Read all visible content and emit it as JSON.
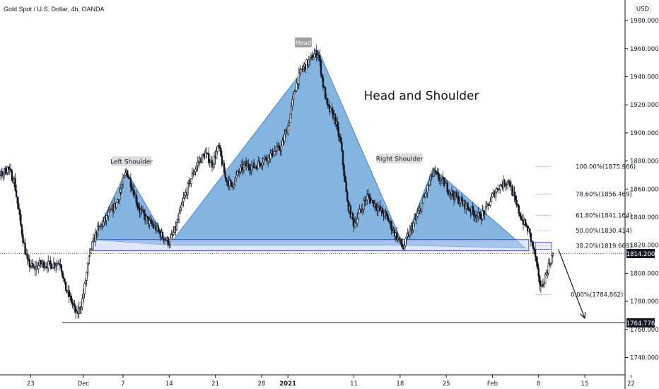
{
  "header": {
    "symbol_title": "Gold Spot / U.S. Dollar, 4h, OANDA",
    "currency": "USD"
  },
  "chart_data": {
    "type": "candlestick",
    "title": "Head and Shoulder",
    "ylim": [
      1724,
      1993
    ],
    "y_ticks": [
      "1740.000",
      "1760.000",
      "1780.000",
      "1800.000",
      "1820.000",
      "1840.000",
      "1860.000",
      "1880.000",
      "1900.000",
      "1920.000",
      "1940.000",
      "1960.000",
      "1980.000"
    ],
    "y_tick_values": [
      1740,
      1760,
      1780,
      1800,
      1820,
      1840,
      1860,
      1880,
      1900,
      1920,
      1940,
      1960,
      1980
    ],
    "x_ticks": [
      "23",
      "Dec",
      "7",
      "14",
      "21",
      "28",
      "2021",
      "11",
      "18",
      "25",
      "Feb",
      "8",
      "15",
      "22"
    ],
    "x_tick_days": [
      -8,
      0,
      6,
      13,
      20,
      27,
      31,
      41,
      48,
      55,
      62,
      69,
      76,
      83
    ],
    "x_origin": "Dec 1",
    "price_series_anchors": [
      {
        "d": -16.5,
        "p": 1889
      },
      {
        "d": -15.5,
        "p": 1881
      },
      {
        "d": -14.5,
        "p": 1870
      },
      {
        "d": -13.5,
        "p": 1866
      },
      {
        "d": -12.5,
        "p": 1870
      },
      {
        "d": -11.5,
        "p": 1875
      },
      {
        "d": -10.5,
        "p": 1866
      },
      {
        "d": -9.5,
        "p": 1834
      },
      {
        "d": -9,
        "p": 1820
      },
      {
        "d": -8.5,
        "p": 1808
      },
      {
        "d": -7.5,
        "p": 1803
      },
      {
        "d": -6.5,
        "p": 1807
      },
      {
        "d": -5,
        "p": 1806
      },
      {
        "d": -3.5,
        "p": 1808
      },
      {
        "d": -2.8,
        "p": 1790
      },
      {
        "d": -1.8,
        "p": 1780
      },
      {
        "d": -1,
        "p": 1770
      },
      {
        "d": -0.2,
        "p": 1780
      },
      {
        "d": 0.5,
        "p": 1800
      },
      {
        "d": 1,
        "p": 1815
      },
      {
        "d": 2,
        "p": 1830
      },
      {
        "d": 3,
        "p": 1836
      },
      {
        "d": 4,
        "p": 1843
      },
      {
        "d": 5,
        "p": 1850
      },
      {
        "d": 6.5,
        "p": 1873
      },
      {
        "d": 7.5,
        "p": 1860
      },
      {
        "d": 8.5,
        "p": 1845
      },
      {
        "d": 10,
        "p": 1836
      },
      {
        "d": 11,
        "p": 1832
      },
      {
        "d": 12,
        "p": 1826
      },
      {
        "d": 13,
        "p": 1822
      },
      {
        "d": 14,
        "p": 1832
      },
      {
        "d": 15,
        "p": 1850
      },
      {
        "d": 16.5,
        "p": 1870
      },
      {
        "d": 17.5,
        "p": 1880
      },
      {
        "d": 18.5,
        "p": 1885
      },
      {
        "d": 19.5,
        "p": 1878
      },
      {
        "d": 20.5,
        "p": 1890
      },
      {
        "d": 21.5,
        "p": 1868
      },
      {
        "d": 22.5,
        "p": 1862
      },
      {
        "d": 23.5,
        "p": 1872
      },
      {
        "d": 24.5,
        "p": 1877
      },
      {
        "d": 26,
        "p": 1876
      },
      {
        "d": 27,
        "p": 1880
      },
      {
        "d": 28.5,
        "p": 1885
      },
      {
        "d": 30,
        "p": 1890
      },
      {
        "d": 31,
        "p": 1905
      },
      {
        "d": 32,
        "p": 1930
      },
      {
        "d": 33,
        "p": 1945
      },
      {
        "d": 34,
        "p": 1950
      },
      {
        "d": 35,
        "p": 1956
      },
      {
        "d": 35.6,
        "p": 1957
      },
      {
        "d": 36.3,
        "p": 1935
      },
      {
        "d": 37,
        "p": 1918
      },
      {
        "d": 38,
        "p": 1912
      },
      {
        "d": 39,
        "p": 1892
      },
      {
        "d": 40,
        "p": 1850
      },
      {
        "d": 41,
        "p": 1835
      },
      {
        "d": 42,
        "p": 1845
      },
      {
        "d": 43,
        "p": 1855
      },
      {
        "d": 44,
        "p": 1850
      },
      {
        "d": 45,
        "p": 1845
      },
      {
        "d": 46,
        "p": 1840
      },
      {
        "d": 47,
        "p": 1830
      },
      {
        "d": 48,
        "p": 1822
      },
      {
        "d": 48.5,
        "p": 1818
      },
      {
        "d": 49.5,
        "p": 1830
      },
      {
        "d": 51,
        "p": 1845
      },
      {
        "d": 53,
        "p": 1872
      },
      {
        "d": 54.5,
        "p": 1865
      },
      {
        "d": 56,
        "p": 1856
      },
      {
        "d": 58,
        "p": 1848
      },
      {
        "d": 60,
        "p": 1840
      },
      {
        "d": 61,
        "p": 1845
      },
      {
        "d": 62,
        "p": 1855
      },
      {
        "d": 63,
        "p": 1862
      },
      {
        "d": 64.5,
        "p": 1866
      },
      {
        "d": 65.5,
        "p": 1850
      },
      {
        "d": 66.5,
        "p": 1838
      },
      {
        "d": 67.5,
        "p": 1830
      },
      {
        "d": 68.5,
        "p": 1812
      },
      {
        "d": 69,
        "p": 1795
      },
      {
        "d": 69.5,
        "p": 1790
      },
      {
        "d": 70,
        "p": 1798
      },
      {
        "d": 70.7,
        "p": 1808
      },
      {
        "d": 71.2,
        "p": 1814.2
      }
    ],
    "neckline_value": 1820,
    "support_value": 1764.776,
    "last_price": 1814.2,
    "last_price_label": "1814.200",
    "support_label": "1764.776",
    "fib_levels": [
      {
        "label": "100.00%(1875.966)",
        "value": 1875.966
      },
      {
        "label": "78.60%(1856.469)",
        "value": 1856.469
      },
      {
        "label": "61.80%(1841.164)",
        "value": 1841.164
      },
      {
        "label": "50.00%(1830.414)",
        "value": 1830.414
      },
      {
        "label": "38.20%(1819.663)",
        "value": 1819.663
      },
      {
        "label": "0.00%(1784.862)",
        "value": 1784.862
      }
    ],
    "fib_day_range": [
      68.5,
      74
    ],
    "pattern_labels": {
      "left_shoulder": "Left Shoulder",
      "head": "Head",
      "right_shoulder": "Right Shoulder"
    },
    "left_shoulder_tri": [
      {
        "d": 1.5,
        "p": 1824
      },
      {
        "d": 6.5,
        "p": 1873
      },
      {
        "d": 13,
        "p": 1820
      }
    ],
    "head_tri": [
      {
        "d": 13,
        "p": 1820
      },
      {
        "d": 35.6,
        "p": 1959
      },
      {
        "d": 48.5,
        "p": 1820
      }
    ],
    "right_shoulder_tri": [
      {
        "d": 48.5,
        "p": 1820
      },
      {
        "d": 53,
        "p": 1875
      },
      {
        "d": 67,
        "p": 1818
      }
    ],
    "neck_box": {
      "d0": 1.5,
      "d1": 67.5,
      "p0": 1816,
      "p1": 1824
    },
    "projection_arrow": {
      "from": {
        "d": 72,
        "p": 1817
      },
      "to": {
        "d": 76,
        "p": 1768
      }
    },
    "colors": {
      "pattern_fill": "#5b9bd5",
      "pattern_stroke": "#4a86c8",
      "neck_fill": "#c5d4f5",
      "neck_stroke": "#3349c9",
      "candle": "#131722",
      "badge": "#a0a0a0",
      "label_box": "#dedede"
    }
  }
}
